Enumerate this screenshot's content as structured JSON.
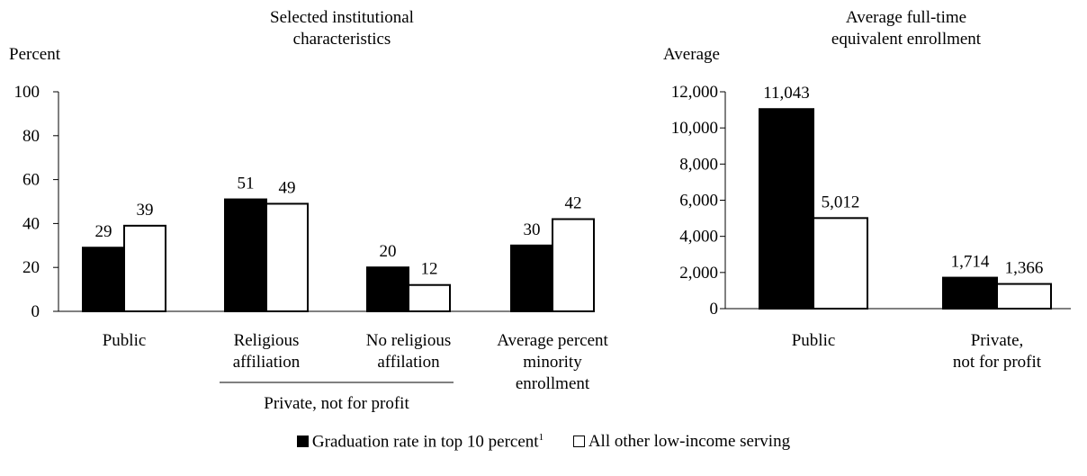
{
  "chart_data": [
    {
      "type": "bar",
      "title": "Selected institutional characteristics",
      "ylabel": "Percent",
      "ylim": [
        0,
        100
      ],
      "yticks": [
        "0",
        "20",
        "40",
        "60",
        "80",
        "100"
      ],
      "categories": [
        "Public",
        "Religious affiliation",
        "No religious affilation",
        "Average percent minority enrollment"
      ],
      "group_label": "Private, not for profit",
      "series": [
        {
          "name": "Graduation rate in top 10 percent",
          "values": [
            29,
            51,
            20,
            30
          ],
          "labels": [
            "29",
            "51",
            "20",
            "30"
          ],
          "color": "#000000"
        },
        {
          "name": "All other low-income serving",
          "values": [
            39,
            49,
            12,
            42
          ],
          "labels": [
            "39",
            "49",
            "12",
            "42"
          ],
          "color": "#ffffff"
        }
      ]
    },
    {
      "type": "bar",
      "title": "Average full-time equivalent enrollment",
      "ylabel": "Average",
      "ylim": [
        0,
        12000
      ],
      "yticks": [
        "0",
        "2,000",
        "4,000",
        "6,000",
        "8,000",
        "10,000",
        "12,000"
      ],
      "categories": [
        "Public",
        "Private, not for profit"
      ],
      "series": [
        {
          "name": "Graduation rate in top 10 percent",
          "values": [
            11043,
            1714
          ],
          "labels": [
            "11,043",
            "1,714"
          ],
          "color": "#000000"
        },
        {
          "name": "All other low-income serving",
          "values": [
            5012,
            1366
          ],
          "labels": [
            "5,012",
            "1,366"
          ],
          "color": "#ffffff"
        }
      ]
    }
  ],
  "legend": {
    "item1": "Graduation rate in top 10 percent",
    "item1_sup": "1",
    "item2": "All other low-income serving"
  }
}
